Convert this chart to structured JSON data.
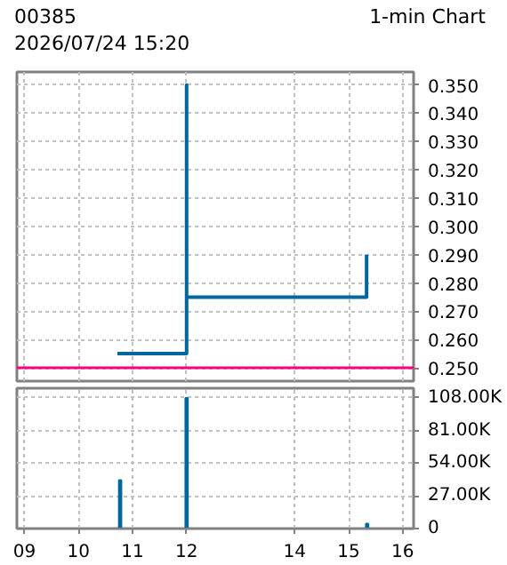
{
  "chart_data": [
    {
      "type": "line",
      "title": "00385",
      "subtitle": "2026/07/24 15:20",
      "annotations": [
        "1-min Chart"
      ],
      "series": [
        {
          "color": "#0066a0",
          "x": [
            10.72,
            12.0,
            12.0,
            12.0,
            15.33,
            15.33
          ],
          "values": [
            0.255,
            0.255,
            0.35,
            0.275,
            0.275,
            0.29
          ]
        }
      ],
      "xlim": [
        8.86,
        16.2
      ],
      "xticks": [
        9,
        10,
        11,
        12,
        14,
        15,
        16
      ],
      "ylim": [
        0.2453,
        0.3546
      ],
      "yticks": [
        {
          "value": 0.25,
          "label": "0.250"
        },
        {
          "value": 0.26,
          "label": "0.260"
        },
        {
          "value": 0.27,
          "label": "0.270"
        },
        {
          "value": 0.28,
          "label": "0.280"
        },
        {
          "value": 0.29,
          "label": "0.290"
        },
        {
          "value": 0.3,
          "label": "0.300"
        },
        {
          "value": 0.31,
          "label": "0.310"
        },
        {
          "value": 0.32,
          "label": "0.320"
        },
        {
          "value": 0.33,
          "label": "0.330"
        },
        {
          "value": 0.34,
          "label": "0.340"
        },
        {
          "value": 0.35,
          "label": "0.350"
        }
      ],
      "ref_lines": [
        {
          "axis": "y",
          "value": 0.25,
          "color": "#ff0080"
        }
      ],
      "grid": true,
      "tick_labels": "y"
    },
    {
      "type": "bar",
      "x": [
        10.77,
        12.0,
        15.34
      ],
      "values": [
        40000,
        108000,
        4000
      ],
      "color": "#0066a0",
      "xlim": [
        8.86,
        16.2
      ],
      "xticks": [
        {
          "value": 9,
          "label": "09"
        },
        10,
        11,
        12,
        14,
        15,
        16
      ],
      "ylim": [
        0,
        116000
      ],
      "yticks": [
        0,
        {
          "value": 27000,
          "label": "27.00K"
        },
        {
          "value": 54000,
          "label": "54.00K"
        },
        {
          "value": 81000,
          "label": "81.00K"
        },
        {
          "value": 108000,
          "label": "108.00K"
        }
      ],
      "grid": true
    }
  ]
}
